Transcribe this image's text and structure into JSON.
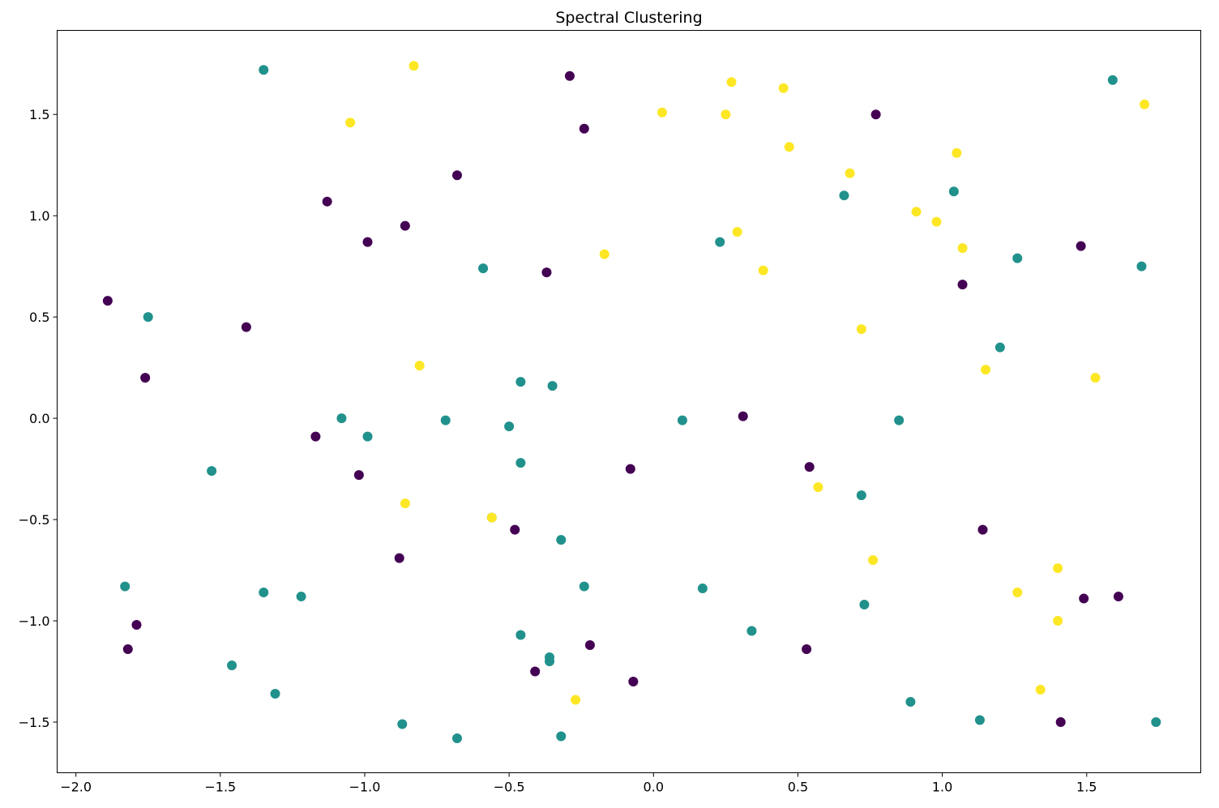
{
  "chart_data": {
    "type": "scatter",
    "title": "Spectral Clustering",
    "xlabel": "",
    "ylabel": "",
    "xlim": [
      -2.065,
      1.895
    ],
    "ylim": [
      -1.75,
      1.915
    ],
    "grid": false,
    "legend": "none",
    "x_ticks": [
      -2.0,
      -1.5,
      -1.0,
      -0.5,
      0.0,
      0.5,
      1.0,
      1.5
    ],
    "x_tick_labels": [
      "−2.0",
      "−1.5",
      "−1.0",
      "−0.5",
      "0.0",
      "0.5",
      "1.0",
      "1.5"
    ],
    "y_ticks": [
      -1.5,
      -1.0,
      -0.5,
      0.0,
      0.5,
      1.0,
      1.5
    ],
    "y_tick_labels": [
      "−1.5",
      "−1.0",
      "−0.5",
      "0.0",
      "0.5",
      "1.0",
      "1.5"
    ],
    "cluster_colors": [
      "#440154",
      "#21918c",
      "#fde725"
    ],
    "series": [
      {
        "color": "#440154",
        "points": [
          [
            -1.89,
            0.58
          ],
          [
            -1.41,
            0.45
          ],
          [
            -1.76,
            0.2
          ],
          [
            -1.13,
            1.07
          ],
          [
            -0.99,
            0.87
          ],
          [
            -0.86,
            0.95
          ],
          [
            -0.68,
            1.2
          ],
          [
            -0.29,
            1.69
          ],
          [
            -0.24,
            1.43
          ],
          [
            -0.37,
            0.72
          ],
          [
            -1.17,
            -0.09
          ],
          [
            -1.02,
            -0.28
          ],
          [
            -0.88,
            -0.69
          ],
          [
            -0.48,
            -0.55
          ],
          [
            -0.08,
            -0.25
          ],
          [
            -1.79,
            -1.02
          ],
          [
            -1.82,
            -1.14
          ],
          [
            -0.41,
            -1.25
          ],
          [
            -0.22,
            -1.12
          ],
          [
            -0.07,
            -1.3
          ],
          [
            0.31,
            0.01
          ],
          [
            0.54,
            -0.24
          ],
          [
            0.53,
            -1.14
          ],
          [
            0.77,
            1.5
          ],
          [
            1.07,
            0.66
          ],
          [
            1.48,
            0.85
          ],
          [
            1.14,
            -0.55
          ],
          [
            1.49,
            -0.89
          ],
          [
            1.61,
            -0.88
          ],
          [
            1.41,
            -1.5
          ]
        ]
      },
      {
        "color": "#21918c",
        "points": [
          [
            -1.35,
            1.72
          ],
          [
            -1.75,
            0.5
          ],
          [
            -1.53,
            -0.26
          ],
          [
            -1.08,
            0.0
          ],
          [
            -0.99,
            -0.09
          ],
          [
            -0.72,
            -0.01
          ],
          [
            -0.5,
            -0.04
          ],
          [
            -0.46,
            0.18
          ],
          [
            -0.35,
            0.16
          ],
          [
            -0.59,
            0.74
          ],
          [
            -0.46,
            -0.22
          ],
          [
            -0.56,
            -0.49
          ],
          [
            -0.32,
            -0.6
          ],
          [
            -0.24,
            -0.83
          ],
          [
            -0.46,
            -1.07
          ],
          [
            -0.36,
            -1.18
          ],
          [
            -0.36,
            -1.2
          ],
          [
            -0.32,
            -1.57
          ],
          [
            -0.68,
            -1.58
          ],
          [
            -0.87,
            -1.51
          ],
          [
            -1.83,
            -0.83
          ],
          [
            -1.35,
            -0.86
          ],
          [
            -1.22,
            -0.88
          ],
          [
            -1.46,
            -1.22
          ],
          [
            -1.31,
            -1.36
          ],
          [
            0.1,
            -0.01
          ],
          [
            0.23,
            0.87
          ],
          [
            0.17,
            -0.84
          ],
          [
            0.34,
            -1.05
          ],
          [
            0.66,
            1.1
          ],
          [
            0.72,
            -0.38
          ],
          [
            0.73,
            -0.92
          ],
          [
            0.85,
            -0.01
          ],
          [
            0.89,
            -1.4
          ],
          [
            1.04,
            1.12
          ],
          [
            1.2,
            0.35
          ],
          [
            1.26,
            0.79
          ],
          [
            1.13,
            -1.49
          ],
          [
            1.59,
            1.67
          ],
          [
            1.69,
            0.75
          ],
          [
            1.74,
            -1.5
          ]
        ]
      },
      {
        "color": "#fde725",
        "points": [
          [
            -0.83,
            1.74
          ],
          [
            -1.05,
            1.46
          ],
          [
            -0.81,
            0.26
          ],
          [
            -0.86,
            -0.42
          ],
          [
            -0.56,
            -0.49
          ],
          [
            -0.17,
            0.81
          ],
          [
            -0.27,
            -1.39
          ],
          [
            0.03,
            1.51
          ],
          [
            0.25,
            1.5
          ],
          [
            0.27,
            1.66
          ],
          [
            0.29,
            0.92
          ],
          [
            0.38,
            0.73
          ],
          [
            0.45,
            1.63
          ],
          [
            0.47,
            1.34
          ],
          [
            0.57,
            -0.34
          ],
          [
            0.68,
            1.21
          ],
          [
            0.72,
            0.44
          ],
          [
            0.76,
            -0.7
          ],
          [
            0.91,
            1.02
          ],
          [
            0.98,
            0.97
          ],
          [
            1.05,
            1.31
          ],
          [
            1.07,
            0.84
          ],
          [
            1.15,
            0.24
          ],
          [
            1.26,
            -0.86
          ],
          [
            1.34,
            -1.34
          ],
          [
            1.4,
            -0.74
          ],
          [
            1.4,
            -1.0
          ],
          [
            1.53,
            0.2
          ],
          [
            1.7,
            1.55
          ]
        ]
      }
    ]
  }
}
